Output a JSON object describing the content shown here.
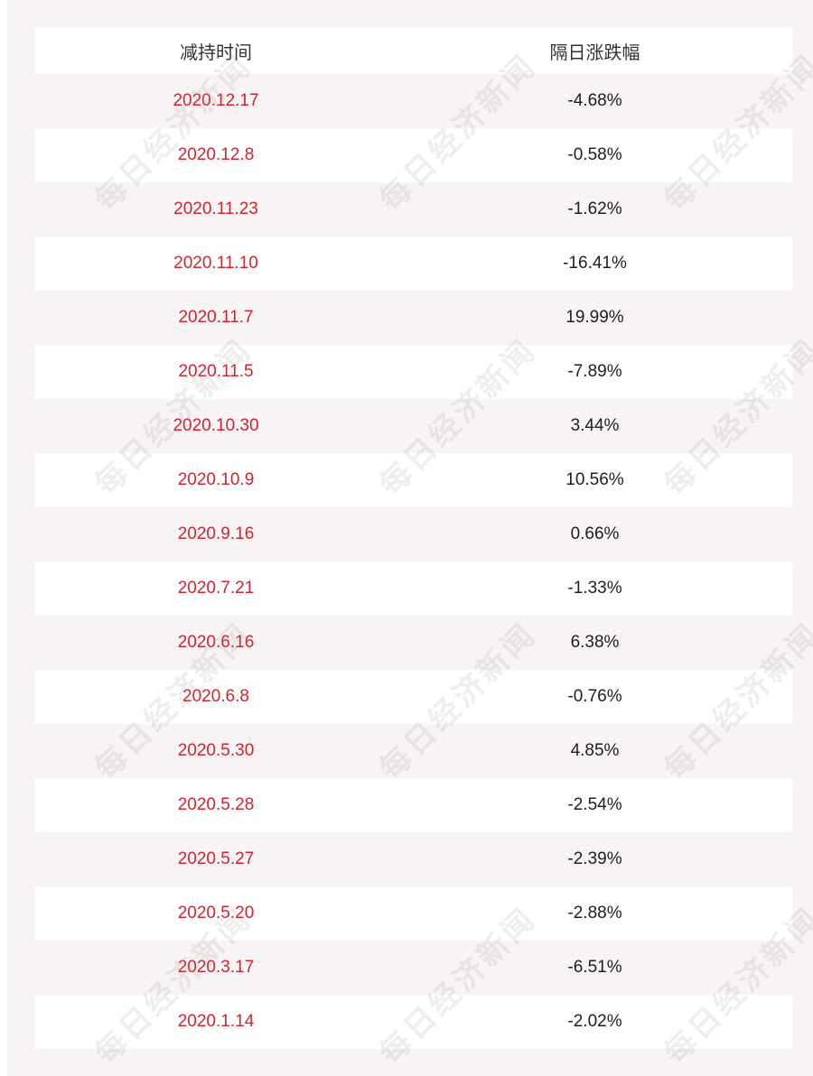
{
  "table": {
    "headers": [
      "减持时间",
      "隔日涨跌幅"
    ],
    "rows": [
      {
        "date": "2020.12.17",
        "change": "-4.68%"
      },
      {
        "date": "2020.12.8",
        "change": "-0.58%"
      },
      {
        "date": "2020.11.23",
        "change": "-1.62%"
      },
      {
        "date": "2020.11.10",
        "change": "-16.41%"
      },
      {
        "date": "2020.11.7",
        "change": "19.99%"
      },
      {
        "date": "2020.11.5",
        "change": "-7.89%"
      },
      {
        "date": "2020.10.30",
        "change": "3.44%"
      },
      {
        "date": "2020.10.9",
        "change": "10.56%"
      },
      {
        "date": "2020.9.16",
        "change": "0.66%"
      },
      {
        "date": "2020.7.21",
        "change": "-1.33%"
      },
      {
        "date": "2020.6.16",
        "change": "6.38%"
      },
      {
        "date": "2020.6.8",
        "change": "-0.76%"
      },
      {
        "date": "2020.5.30",
        "change": "4.85%"
      },
      {
        "date": "2020.5.28",
        "change": "-2.54%"
      },
      {
        "date": "2020.5.27",
        "change": "-2.39%"
      },
      {
        "date": "2020.5.20",
        "change": "-2.88%"
      },
      {
        "date": "2020.3.17",
        "change": "-6.51%"
      },
      {
        "date": "2020.1.14",
        "change": "-2.02%"
      }
    ]
  },
  "watermark": "每日经济新闻",
  "colors": {
    "date_text": "#d0252f",
    "value_text": "#1e1e1e",
    "header_text": "#333333",
    "tint_background": "#f8f3f4"
  }
}
